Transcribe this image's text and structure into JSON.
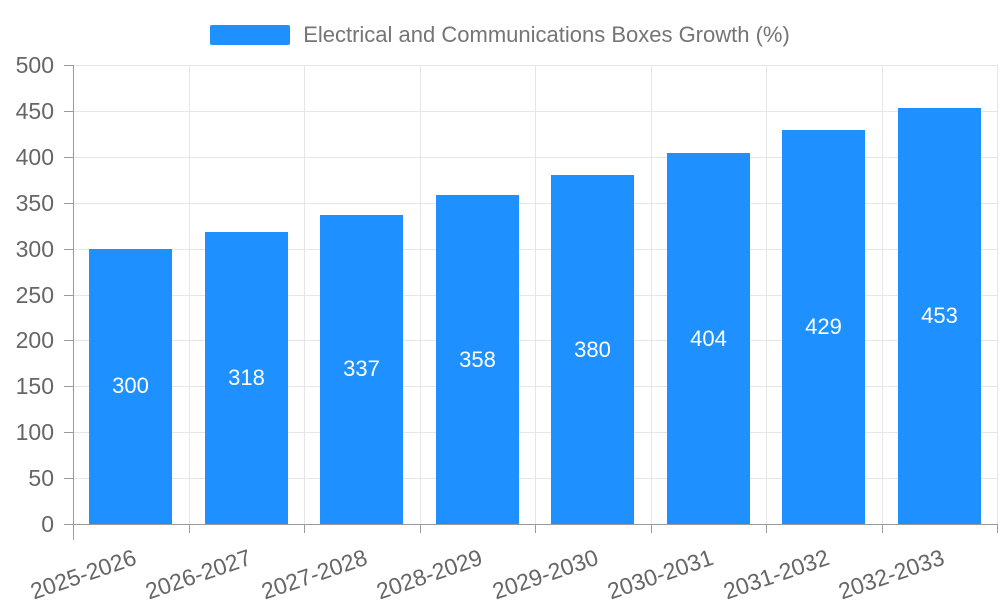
{
  "chart_data": {
    "type": "bar",
    "title": "Electrical and Communications Boxes Growth (%)",
    "categories": [
      "2025-2026",
      "2026-2027",
      "2027-2028",
      "2028-2029",
      "2029-2030",
      "2030-2031",
      "2031-2032",
      "2032-2033"
    ],
    "values": [
      300,
      318,
      337,
      358,
      380,
      404,
      429,
      453
    ],
    "xlabel": "",
    "ylabel": "",
    "ylim": [
      0,
      500
    ],
    "yticks": [
      0,
      50,
      100,
      150,
      200,
      250,
      300,
      350,
      400,
      450,
      500
    ],
    "grid": true,
    "legend_position": "top",
    "x_label_rotation_deg": -19,
    "bar_color": "#1E90FF",
    "value_label_color": "#ffffff"
  },
  "colors": {
    "background": "#ffffff",
    "bar": "#1E90FF",
    "axis_line": "#9a9a9a",
    "grid_line": "#e6e6e6",
    "axis_text": "#666666",
    "legend_text": "#757575",
    "bar_value_text": "#ffffff"
  }
}
